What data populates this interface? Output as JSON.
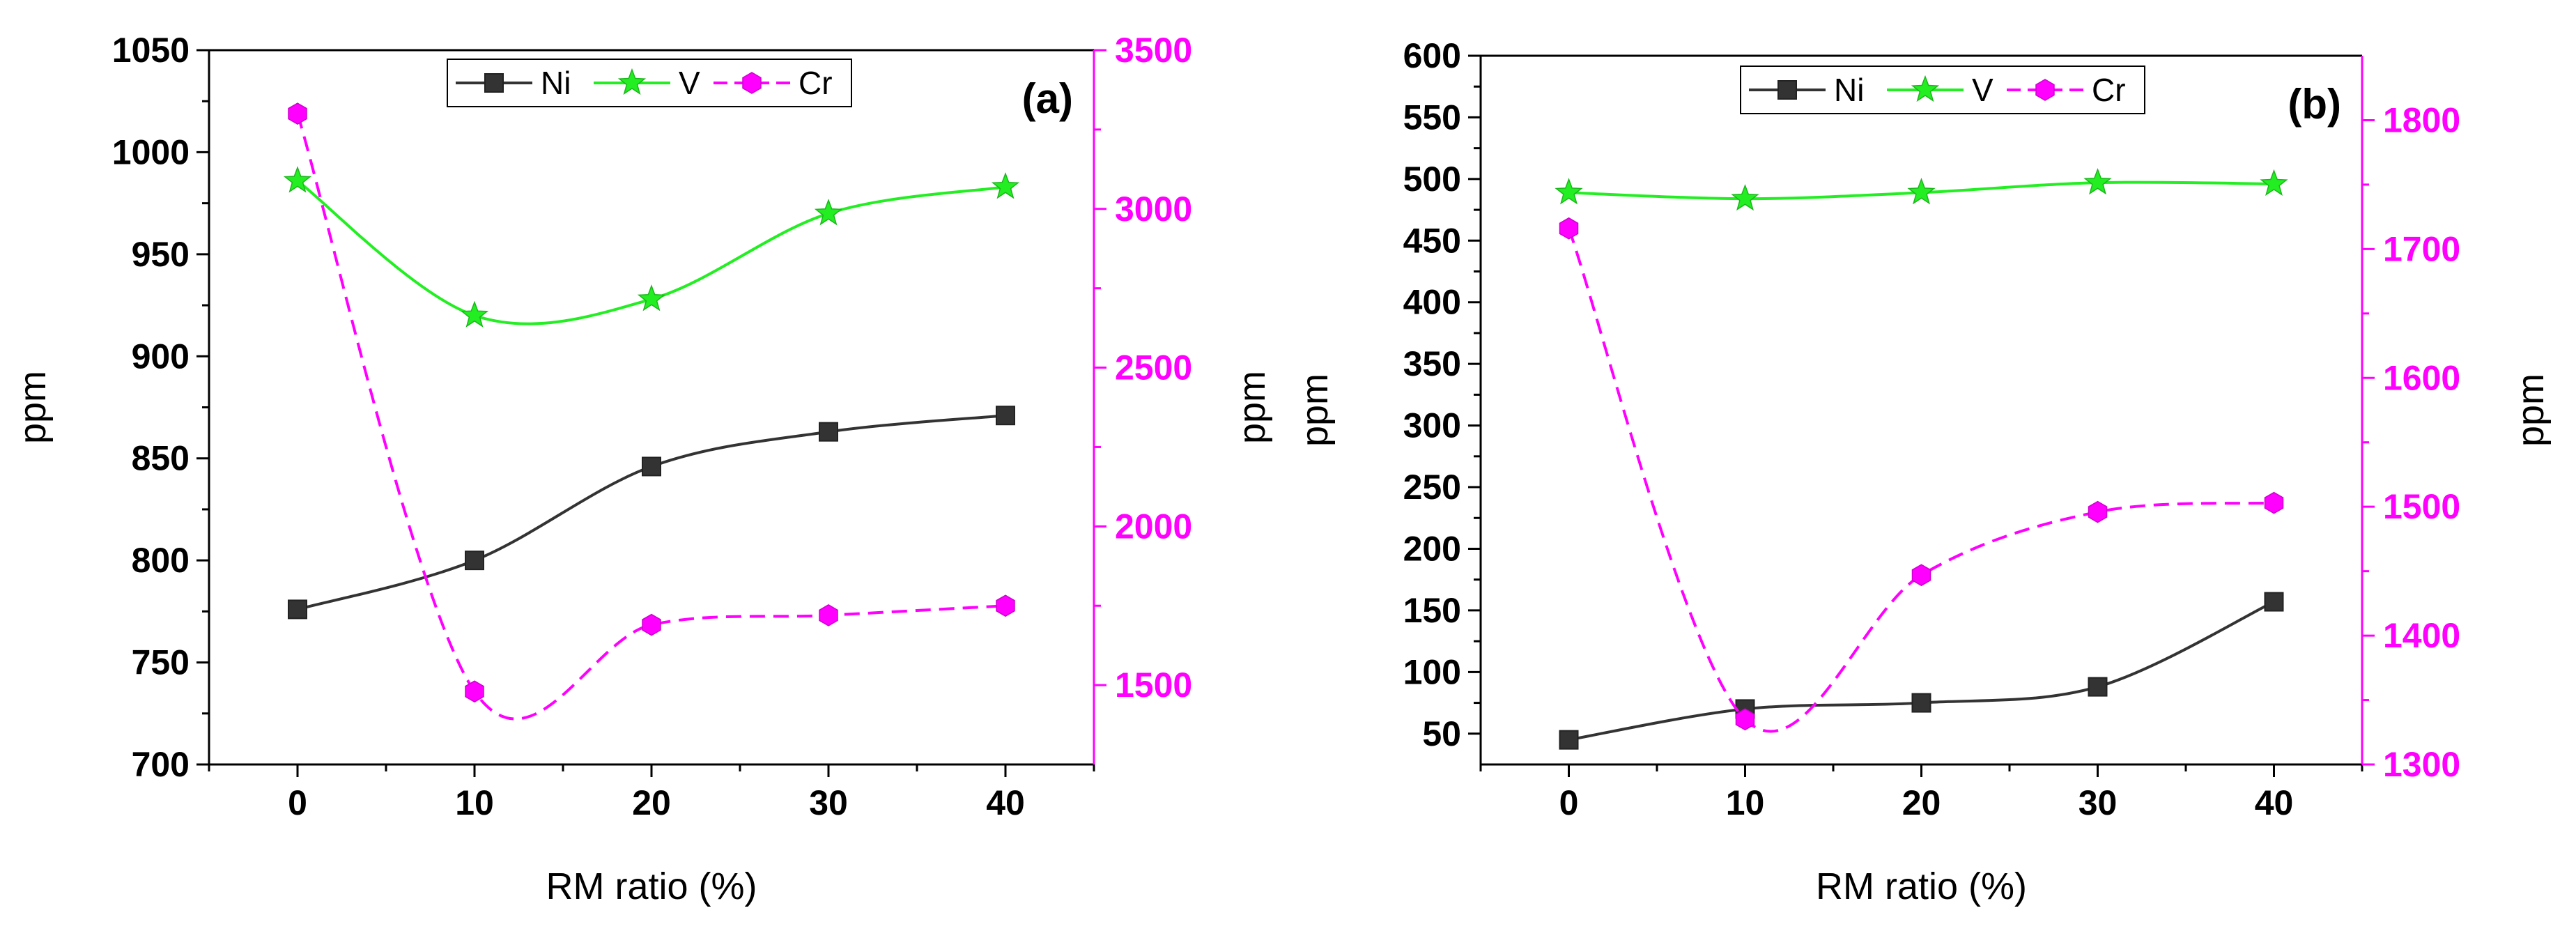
{
  "colors": {
    "Ni": "#333333",
    "V": "#22ee22",
    "Cr": "#ff00ff",
    "axis": "#000000"
  },
  "legend": {
    "Ni": {
      "label": "Ni",
      "marker": "square-icon"
    },
    "V": {
      "label": "V",
      "marker": "star-icon"
    },
    "Cr": {
      "label": "Cr",
      "marker": "hexagon-icon"
    }
  },
  "chart_data": [
    {
      "type": "line",
      "panel_label": "(a)",
      "xlabel": "RM ratio (%)",
      "ylabel": "ppm",
      "y2label": "ppm",
      "x": [
        0,
        10,
        20,
        30,
        40
      ],
      "xlim": [
        -5,
        45
      ],
      "xticks": [
        "0",
        "10",
        "20",
        "30",
        "40"
      ],
      "ylim": [
        700,
        1050
      ],
      "yticks": [
        "700",
        "750",
        "800",
        "850",
        "900",
        "950",
        "1000",
        "1050"
      ],
      "y2lim": [
        1250,
        3500
      ],
      "y2ticks": [
        "1500",
        "2000",
        "2500",
        "3000",
        "3500"
      ],
      "series": [
        {
          "name": "Ni",
          "axis": "left",
          "values": [
            776,
            800,
            846,
            863,
            871
          ]
        },
        {
          "name": "V",
          "axis": "left",
          "values": [
            986,
            920,
            928,
            970,
            983
          ]
        },
        {
          "name": "Cr",
          "axis": "right",
          "values": [
            3300,
            1480,
            1690,
            1720,
            1750
          ]
        }
      ]
    },
    {
      "type": "line",
      "panel_label": "(b)",
      "xlabel": "RM ratio (%)",
      "ylabel": "ppm",
      "y2label": "ppm",
      "x": [
        0,
        10,
        20,
        30,
        40
      ],
      "xlim": [
        -5,
        45
      ],
      "xticks": [
        "0",
        "10",
        "20",
        "30",
        "40"
      ],
      "ylim": [
        25,
        600
      ],
      "yticks": [
        "50",
        "100",
        "150",
        "200",
        "250",
        "300",
        "350",
        "400",
        "450",
        "500",
        "550",
        "600"
      ],
      "y2lim": [
        1300,
        1850
      ],
      "y2ticks": [
        "1300",
        "1400",
        "1500",
        "1600",
        "1700",
        "1800"
      ],
      "series": [
        {
          "name": "Ni",
          "axis": "left",
          "values": [
            45,
            70,
            75,
            88,
            157
          ]
        },
        {
          "name": "V",
          "axis": "left",
          "values": [
            489,
            484,
            489,
            497,
            496
          ]
        },
        {
          "name": "Cr",
          "axis": "right",
          "values": [
            1716,
            1335,
            1447,
            1496,
            1503
          ]
        }
      ]
    }
  ]
}
